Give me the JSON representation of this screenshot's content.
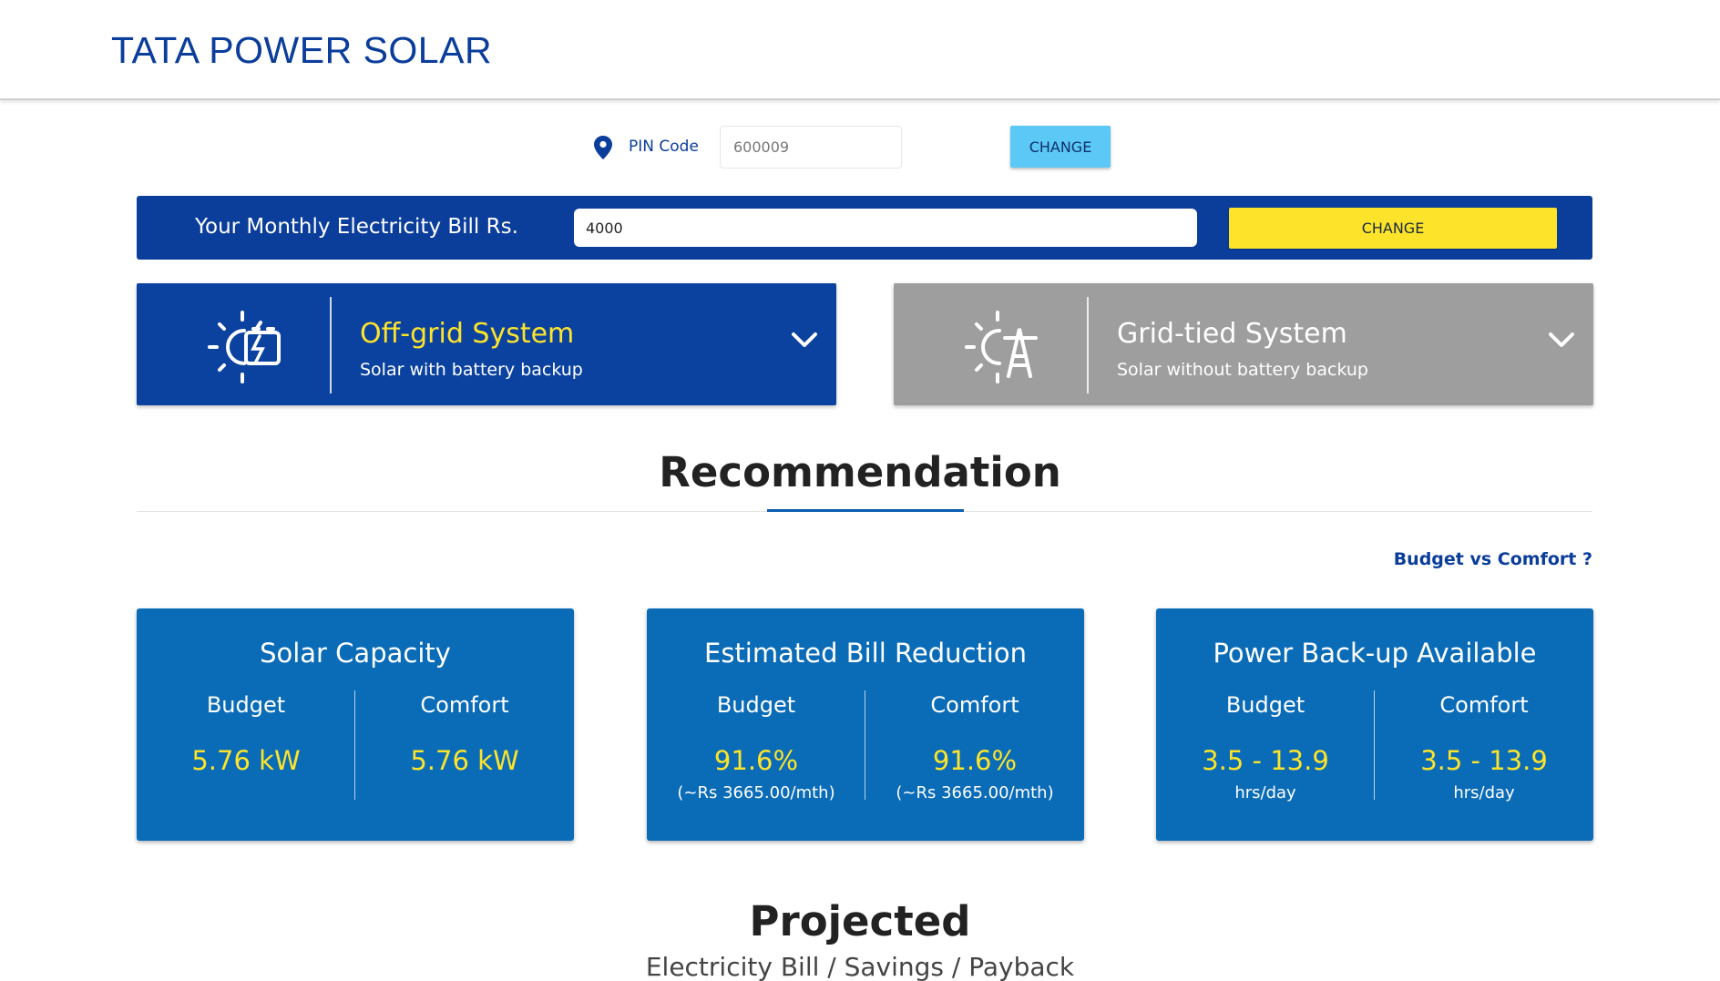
{
  "header": {
    "brand": "TATA POWER SOLAR"
  },
  "pin": {
    "label": "PIN Code",
    "value": "600009",
    "button": "CHANGE"
  },
  "bill": {
    "label": "Your Monthly Electricity Bill Rs.",
    "value": "4000",
    "button": "CHANGE"
  },
  "systems": [
    {
      "title": "Off-grid System",
      "subtitle": "Solar with battery backup",
      "icon": "solar-battery-icon",
      "state": "selected"
    },
    {
      "title": "Grid-tied System",
      "subtitle": "Solar without battery backup",
      "icon": "solar-grid-tower-icon",
      "state": "unselected"
    }
  ],
  "recommendation": {
    "title": "Recommendation",
    "budget_link": "Budget vs Comfort ?"
  },
  "cards": [
    {
      "title": "Solar Capacity",
      "budget_label": "Budget",
      "comfort_label": "Comfort",
      "budget_value": "5.76 kW",
      "comfort_value": "5.76 kW",
      "budget_note": "",
      "comfort_note": ""
    },
    {
      "title": "Estimated Bill Reduction",
      "budget_label": "Budget",
      "comfort_label": "Comfort",
      "budget_value": "91.6%",
      "comfort_value": "91.6%",
      "budget_note": "(~Rs 3665.00/mth)",
      "comfort_note": "(~Rs 3665.00/mth)"
    },
    {
      "title": "Power Back-up Available",
      "budget_label": "Budget",
      "comfort_label": "Comfort",
      "budget_value": "3.5 - 13.9",
      "comfort_value": "3.5 - 13.9",
      "budget_note": "hrs/day",
      "comfort_note": "hrs/day"
    }
  ],
  "projected": {
    "title": "Projected",
    "subtitle": "Electricity Bill / Savings / Payback"
  },
  "colors": {
    "brand_blue": "#0b3d9b",
    "card_blue": "#0a6bb7",
    "accent_yellow": "#fde42a",
    "pin_button": "#5bc8f5",
    "inactive_gray": "#9e9e9e"
  }
}
